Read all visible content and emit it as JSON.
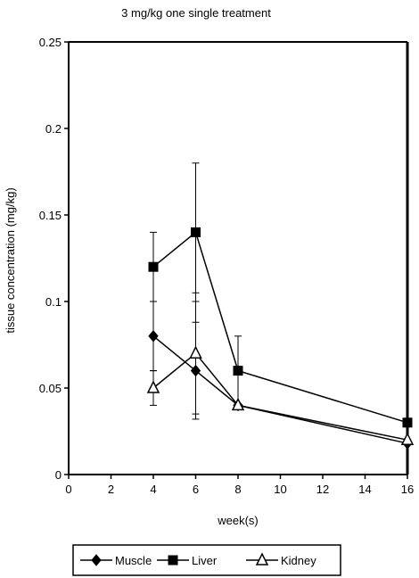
{
  "chart_data": {
    "type": "line",
    "title": "3 mg/kg one single treatment",
    "xlabel": "week(s)",
    "ylabel": "tissue concentration (mg/kg)",
    "xlim": [
      0,
      16
    ],
    "ylim": [
      0,
      0.25
    ],
    "xticks": [
      0,
      2,
      4,
      6,
      8,
      10,
      12,
      14,
      16
    ],
    "yticks": [
      0,
      0.05,
      0.1,
      0.15,
      0.2,
      0.25
    ],
    "xtick_labels": [
      "0",
      "2",
      "4",
      "6",
      "8",
      "10",
      "12",
      "14",
      "16"
    ],
    "ytick_labels": [
      "0",
      "0.05",
      "0.1",
      "0.15",
      "0.2",
      "0.25"
    ],
    "grid": false,
    "legend_position": "bottom",
    "series": [
      {
        "name": "Muscle",
        "marker": "diamond",
        "x": [
          4,
          6,
          8,
          16
        ],
        "y": [
          0.08,
          0.06,
          0.04,
          0.018
        ],
        "error": [
          0.02,
          0.028,
          0.0,
          0.0
        ]
      },
      {
        "name": "Liver",
        "marker": "square",
        "x": [
          4,
          6,
          8,
          16
        ],
        "y": [
          0.12,
          0.14,
          0.06,
          0.03
        ],
        "error": [
          0.02,
          0.04,
          0.02,
          0.0
        ]
      },
      {
        "name": "Kidney",
        "marker": "triangle-open",
        "x": [
          4,
          6,
          8,
          16
        ],
        "y": [
          0.05,
          0.07,
          0.04,
          0.02
        ],
        "error": [
          0.01,
          0.035,
          0.0,
          0.0
        ]
      }
    ]
  }
}
